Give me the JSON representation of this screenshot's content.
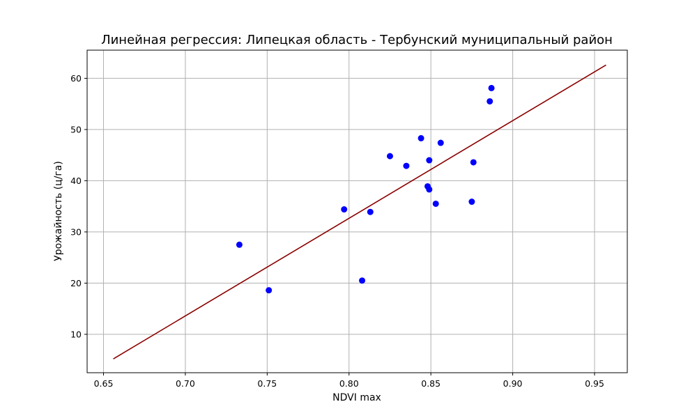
{
  "chart_data": {
    "type": "scatter",
    "title": "Линейная регрессия: Липецкая область - Тербунский муниципальный район",
    "xlabel": "NDVI max",
    "ylabel": "Урожайность (ц/га)",
    "xlim": [
      0.64,
      0.97
    ],
    "ylim": [
      2.5,
      65.5
    ],
    "grid": true,
    "x_ticks": [
      0.65,
      0.7,
      0.75,
      0.8,
      0.85,
      0.9,
      0.95
    ],
    "x_tick_labels": [
      "0.65",
      "0.70",
      "0.75",
      "0.80",
      "0.85",
      "0.90",
      "0.95"
    ],
    "y_ticks": [
      10,
      20,
      30,
      40,
      50,
      60
    ],
    "y_tick_labels": [
      "10",
      "20",
      "30",
      "40",
      "50",
      "60"
    ],
    "series": [
      {
        "kind": "scatter",
        "color": "#0000ff",
        "points": [
          {
            "x": 0.733,
            "y": 27.5
          },
          {
            "x": 0.751,
            "y": 18.6
          },
          {
            "x": 0.797,
            "y": 34.4
          },
          {
            "x": 0.808,
            "y": 20.5
          },
          {
            "x": 0.813,
            "y": 33.9
          },
          {
            "x": 0.825,
            "y": 44.8
          },
          {
            "x": 0.835,
            "y": 42.9
          },
          {
            "x": 0.844,
            "y": 48.3
          },
          {
            "x": 0.848,
            "y": 38.9
          },
          {
            "x": 0.849,
            "y": 38.3
          },
          {
            "x": 0.849,
            "y": 44.0
          },
          {
            "x": 0.853,
            "y": 35.5
          },
          {
            "x": 0.856,
            "y": 47.4
          },
          {
            "x": 0.875,
            "y": 35.9
          },
          {
            "x": 0.876,
            "y": 43.6
          },
          {
            "x": 0.886,
            "y": 55.5
          },
          {
            "x": 0.887,
            "y": 58.1
          }
        ]
      },
      {
        "kind": "line",
        "color": "#8b0000",
        "points": [
          {
            "x": 0.656,
            "y": 5.2
          },
          {
            "x": 0.957,
            "y": 62.6
          }
        ]
      }
    ]
  }
}
